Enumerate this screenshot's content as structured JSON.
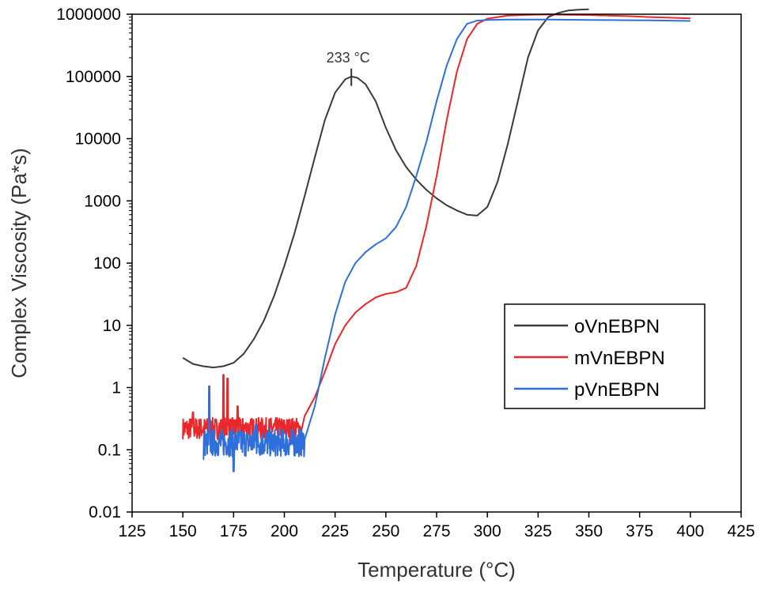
{
  "chart_data": {
    "type": "line",
    "xlabel": "Temperature (°C)",
    "ylabel": "Complex Viscosity (Pa*s)",
    "xlim": [
      125,
      425
    ],
    "ylim": [
      0.01,
      1000000
    ],
    "yscale": "log",
    "xticks": [
      125,
      150,
      175,
      200,
      225,
      250,
      275,
      300,
      325,
      350,
      375,
      400,
      425
    ],
    "yticks": [
      {
        "value": 0.01,
        "label": "0.01"
      },
      {
        "value": 0.1,
        "label": "0.1"
      },
      {
        "value": 1,
        "label": "1"
      },
      {
        "value": 10,
        "label": "10"
      },
      {
        "value": 100,
        "label": "100"
      },
      {
        "value": 1000,
        "label": "1000"
      },
      {
        "value": 10000,
        "label": "10000"
      },
      {
        "value": 100000,
        "label": "100000"
      },
      {
        "value": 1000000,
        "label": "1000000"
      }
    ],
    "grid": false,
    "legend_position": "bottom-right",
    "annotation": {
      "text": "233 °C",
      "x": 233,
      "y": 100000
    },
    "series": [
      {
        "name": "oVnEBPN",
        "color": "#3a3a3a",
        "x": [
          150,
          155,
          160,
          165,
          170,
          175,
          180,
          185,
          190,
          195,
          200,
          205,
          210,
          215,
          220,
          225,
          230,
          233,
          236,
          240,
          245,
          250,
          255,
          260,
          265,
          270,
          275,
          280,
          285,
          290,
          295,
          300,
          305,
          310,
          315,
          320,
          325,
          330,
          335,
          340,
          345,
          350
        ],
        "y": [
          3,
          2.4,
          2.2,
          2.1,
          2.2,
          2.5,
          3.5,
          6,
          12,
          30,
          90,
          300,
          1200,
          5000,
          20000,
          55000,
          90000,
          100000,
          95000,
          75000,
          40000,
          15000,
          6500,
          3500,
          2200,
          1500,
          1100,
          850,
          700,
          600,
          580,
          800,
          2000,
          8000,
          40000,
          200000,
          550000,
          900000,
          1050000,
          1150000,
          1180000,
          1200000
        ]
      },
      {
        "name": "mVnEBPN",
        "color": "#e8282a",
        "x": [
          150,
          155,
          160,
          165,
          170,
          175,
          180,
          185,
          190,
          195,
          200,
          205,
          210,
          215,
          220,
          225,
          230,
          235,
          240,
          245,
          250,
          255,
          260,
          265,
          270,
          275,
          280,
          285,
          290,
          295,
          300,
          310,
          320,
          330,
          340,
          350,
          360,
          370,
          380,
          390,
          400
        ],
        "y": [
          0.22,
          0.2,
          0.21,
          0.2,
          0.22,
          0.21,
          0.22,
          0.23,
          0.22,
          0.21,
          0.22,
          0.25,
          0.35,
          0.7,
          1.8,
          5,
          10,
          16,
          22,
          28,
          32,
          34,
          40,
          90,
          400,
          2500,
          20000,
          120000,
          400000,
          700000,
          850000,
          950000,
          980000,
          990000,
          980000,
          970000,
          950000,
          930000,
          900000,
          880000,
          860000
        ]
      },
      {
        "name": "pVnEBPN",
        "color": "#2f6fdc",
        "x": [
          160,
          165,
          170,
          175,
          180,
          185,
          190,
          195,
          200,
          205,
          210,
          215,
          220,
          225,
          230,
          235,
          240,
          245,
          250,
          255,
          260,
          265,
          270,
          275,
          280,
          285,
          290,
          295,
          300,
          310,
          320,
          330,
          340,
          350,
          360,
          370,
          380,
          390,
          400
        ],
        "y": [
          0.12,
          0.13,
          0.12,
          0.13,
          0.12,
          0.12,
          0.13,
          0.12,
          0.13,
          0.13,
          0.16,
          0.5,
          3,
          15,
          50,
          100,
          150,
          200,
          250,
          380,
          800,
          2500,
          9000,
          40000,
          150000,
          400000,
          700000,
          790000,
          810000,
          820000,
          820000,
          820000,
          815000,
          810000,
          805000,
          800000,
          795000,
          790000,
          780000
        ]
      }
    ],
    "noise_segments": [
      {
        "series": 1,
        "x_from": 150,
        "x_to": 208,
        "center": 0.22,
        "spread": 0.35,
        "spikes": [
          {
            "x": 155,
            "y": 0.4
          },
          {
            "x": 170,
            "y": 1.6
          },
          {
            "x": 172,
            "y": 1.4
          },
          {
            "x": 177,
            "y": 0.5
          }
        ]
      },
      {
        "series": 2,
        "x_from": 160,
        "x_to": 210,
        "center": 0.13,
        "spread": 0.45,
        "spikes": [
          {
            "x": 160,
            "y": 0.07
          },
          {
            "x": 163,
            "y": 1.05
          },
          {
            "x": 175,
            "y": 0.045
          },
          {
            "x": 186,
            "y": 0.25
          }
        ]
      }
    ]
  }
}
